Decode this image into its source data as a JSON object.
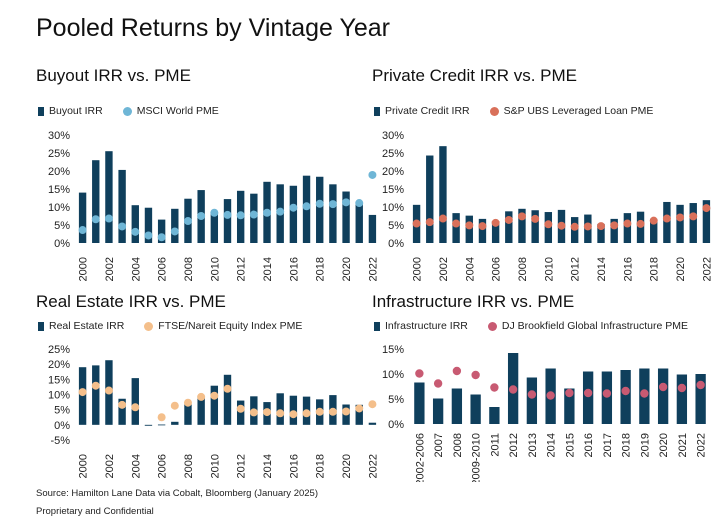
{
  "page_title": "Pooled Returns by Vintage Year",
  "source": "Source: Hamilton Lane Data via Cobalt, Bloomberg (January 2025)",
  "confidential": "Proprietary and Confidential",
  "colors": {
    "bar": "#0f3f5c"
  },
  "chart_data": [
    {
      "type": "bar",
      "title": "Buyout IRR vs. PME",
      "categories": [
        "2000",
        "2001",
        "2002",
        "2003",
        "2004",
        "2005",
        "2006",
        "2007",
        "2008",
        "2009",
        "2010",
        "2011",
        "2012",
        "2013",
        "2014",
        "2015",
        "2016",
        "2017",
        "2018",
        "2019",
        "2020",
        "2021",
        "2022"
      ],
      "x_tick_labels": [
        "2000",
        "2002",
        "2004",
        "2006",
        "2008",
        "2010",
        "2012",
        "2014",
        "2016",
        "2018",
        "2020",
        "2022"
      ],
      "y_ticks": [
        "0%",
        "5%",
        "10%",
        "15%",
        "20%",
        "25%",
        "30%"
      ],
      "ylim": [
        0,
        30
      ],
      "series": [
        {
          "name": "Buyout IRR",
          "kind": "bar",
          "color": "#0f3f5c",
          "values": [
            14,
            23,
            25.5,
            20.3,
            10.5,
            9.8,
            6.5,
            9.5,
            12.3,
            14.7,
            8.5,
            12.2,
            14.5,
            13.7,
            17,
            16.3,
            15.9,
            18.7,
            18.4,
            16.3,
            14.3,
            11.2,
            7.8
          ]
        },
        {
          "name": "MSCI World PME",
          "kind": "dot",
          "color": "#6fb6d6",
          "values": [
            3.6,
            6.6,
            6.8,
            4.6,
            3.1,
            2.1,
            1.6,
            3.2,
            6.1,
            7.5,
            8.4,
            7.8,
            7.7,
            7.9,
            8.4,
            8.7,
            9.8,
            10.2,
            10.9,
            10.8,
            11.3,
            11.1,
            18.9
          ]
        }
      ]
    },
    {
      "type": "bar",
      "title": "Private Credit IRR vs. PME",
      "categories": [
        "2000",
        "2001",
        "2002",
        "2003",
        "2004",
        "2005",
        "2006",
        "2007",
        "2008",
        "2009",
        "2010",
        "2011",
        "2012",
        "2013",
        "2014",
        "2015",
        "2016",
        "2017",
        "2018",
        "2019",
        "2020",
        "2021",
        "2022"
      ],
      "x_tick_labels": [
        "2000",
        "2002",
        "2004",
        "2006",
        "2008",
        "2010",
        "2012",
        "2014",
        "2016",
        "2018",
        "2020",
        "2022"
      ],
      "y_ticks": [
        "0%",
        "5%",
        "10%",
        "15%",
        "20%",
        "25%",
        "30%"
      ],
      "ylim": [
        0,
        30
      ],
      "series": [
        {
          "name": "Private Credit IRR",
          "kind": "bar",
          "color": "#0f3f5c",
          "values": [
            10.6,
            24.3,
            26.9,
            8.3,
            7.6,
            6.7,
            6.1,
            8.8,
            9.5,
            9.1,
            8.6,
            9.2,
            7.2,
            7.9,
            5.3,
            6.7,
            8.3,
            8.7,
            6.7,
            11.4,
            10.6,
            11.1,
            11.9
          ]
        },
        {
          "name": "S&P UBS Leveraged Loan PME",
          "kind": "dot",
          "color": "#d9705a",
          "values": [
            5.4,
            5.8,
            6.8,
            5.4,
            4.9,
            4.7,
            5.6,
            6.4,
            7.4,
            6.7,
            5.2,
            4.8,
            4.5,
            4.6,
            4.7,
            4.9,
            5.4,
            5.3,
            6.2,
            6.8,
            7.1,
            7.4,
            9.7
          ]
        }
      ]
    },
    {
      "type": "bar",
      "title": "Real Estate IRR vs. PME",
      "categories": [
        "2000",
        "2001",
        "2002",
        "2003",
        "2004",
        "2005",
        "2006",
        "2007",
        "2008",
        "2009",
        "2010",
        "2011",
        "2012",
        "2013",
        "2014",
        "2015",
        "2016",
        "2017",
        "2018",
        "2019",
        "2020",
        "2021",
        "2022"
      ],
      "x_tick_labels": [
        "2000",
        "2002",
        "2004",
        "2006",
        "2008",
        "2010",
        "2012",
        "2014",
        "2016",
        "2018",
        "2020",
        "2022"
      ],
      "y_ticks": [
        "-5%",
        "0%",
        "5%",
        "10%",
        "15%",
        "20%",
        "25%"
      ],
      "ylim": [
        -5,
        25
      ],
      "series": [
        {
          "name": "Real Estate IRR",
          "kind": "bar",
          "color": "#0f3f5c",
          "values": [
            19,
            19.6,
            21.3,
            8.6,
            15.4,
            -0.3,
            0.1,
            1,
            6.8,
            9.4,
            12.9,
            16.5,
            8,
            9.4,
            7.5,
            10.4,
            9.6,
            9.3,
            8.4,
            9.8,
            6.7,
            6.6,
            0.7
          ]
        },
        {
          "name": "FTSE/Nareit Equity Index PME",
          "kind": "dot",
          "color": "#f4bf8b",
          "values": [
            10.8,
            12.9,
            11.3,
            6.6,
            5.8,
            null,
            2.5,
            6.3,
            7.3,
            9.2,
            9.6,
            11.9,
            5.3,
            4.1,
            4.2,
            3.8,
            3.5,
            3.8,
            4.3,
            4.3,
            4.4,
            5.4,
            6.8
          ]
        }
      ]
    },
    {
      "type": "bar",
      "title": "Infrastructure IRR vs. PME",
      "categories": [
        "2002-2006",
        "2007",
        "2008",
        "2009-2010",
        "2011",
        "2012",
        "2013",
        "2014",
        "2015",
        "2016",
        "2017",
        "2018",
        "2019",
        "2020",
        "2021",
        "2022"
      ],
      "x_tick_labels": [
        "2002-2006",
        "2007",
        "2008",
        "2009-2010",
        "2011",
        "2012",
        "2013",
        "2014",
        "2015",
        "2016",
        "2017",
        "2018",
        "2019",
        "2020",
        "2021",
        "2022"
      ],
      "y_ticks": [
        "0%",
        "5%",
        "10%",
        "15%"
      ],
      "ylim": [
        0,
        15
      ],
      "series": [
        {
          "name": "Infrastructure IRR",
          "kind": "bar",
          "color": "#0f3f5c",
          "values": [
            8.3,
            5.1,
            7.1,
            5.9,
            3.4,
            14.2,
            9.3,
            11.1,
            7.1,
            10.5,
            10.5,
            10.8,
            11.1,
            11.1,
            9.9,
            10
          ]
        },
        {
          "name": "DJ Brookfield Global Infrastructure PME",
          "kind": "dot",
          "color": "#c85a72",
          "values": [
            10.1,
            8.1,
            10.6,
            9.8,
            7.3,
            6.9,
            5.9,
            5.7,
            6.2,
            6.2,
            6.1,
            6.6,
            6.1,
            7.4,
            7.2,
            7.8
          ]
        }
      ]
    }
  ]
}
